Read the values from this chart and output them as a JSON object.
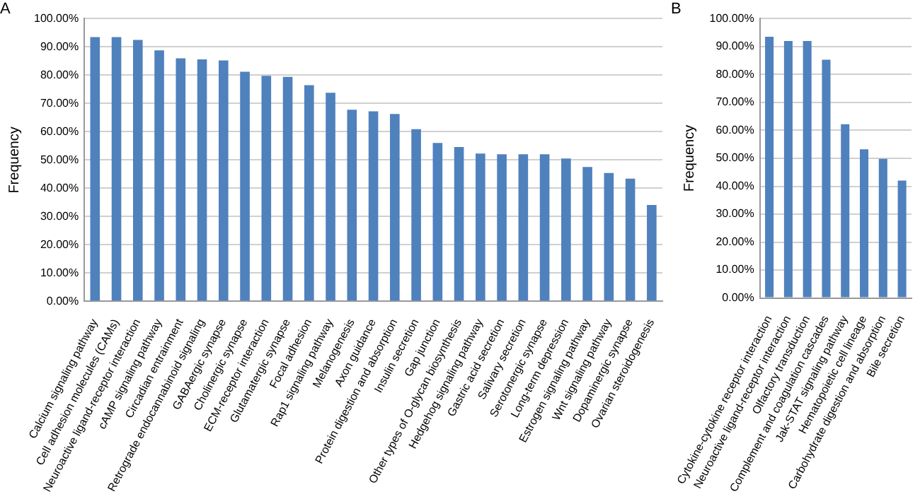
{
  "chart_data": [
    {
      "type": "bar",
      "title": "A",
      "ylabel": "Frequency",
      "grid": "y",
      "legend": false,
      "categories": [
        "Calcium signaling pathway",
        "Cell adhesion molecules (CAMs)",
        "Neuroactive ligand-receptor interaction",
        "cAMP signaling pathway",
        "Circadian entrainment",
        "Retrograde endocannabinoid signaling",
        "GABAergic synapse",
        "Cholinergic synapse",
        "ECM-receptor interaction",
        "Glutamatergic synapse",
        "Focal adhesion",
        "Rap1 signaling pathway",
        "Melanogenesis",
        "Axon guidance",
        "Protein digestion and absorption",
        "Insulin secretion",
        "Gap junction",
        "Other types of O-glycan biosynthesis",
        "Hedgehog signaling pathway",
        "Gastric acid secretion",
        "Salivary secretion",
        "Serotonergic synapse",
        "Long-term depression",
        "Estrogen signaling pathway",
        "Wnt signaling pathway",
        "Dopaminergic synapse",
        "Ovarian steroidogenesis"
      ],
      "series": [
        {
          "color": "#4f81bd",
          "values": [
            93.5,
            93.5,
            92.5,
            88.8,
            86,
            85.6,
            85.2,
            81.2,
            79.8,
            79.4,
            76.5,
            73.8,
            67.8,
            67.2,
            66.3,
            60.9,
            56,
            54.6,
            52.3,
            52,
            52,
            52,
            50.5,
            47.5,
            45.4,
            43.4,
            34.1
          ]
        }
      ],
      "ylim": [
        0,
        100
      ],
      "yticks": [
        {
          "value": 0,
          "label": "0.00%"
        },
        {
          "value": 10,
          "label": "10.00%"
        },
        {
          "value": 20,
          "label": "20.00%"
        },
        {
          "value": 30,
          "label": "30.00%"
        },
        {
          "value": 40,
          "label": "40.00%"
        },
        {
          "value": 50,
          "label": "50.00%"
        },
        {
          "value": 60,
          "label": "60.00%"
        },
        {
          "value": 70,
          "label": "70.00%"
        },
        {
          "value": 80,
          "label": "80.00%"
        },
        {
          "value": 90,
          "label": "90.00%"
        },
        {
          "value": 100,
          "label": "100.00%"
        }
      ]
    },
    {
      "type": "bar",
      "title": "B",
      "ylabel": "Frequency",
      "grid": "y",
      "legend": false,
      "categories": [
        "Cytokine-cytokine receptor interaction",
        "Neuroactive ligand-receptor interaction",
        "Olfactory transduction",
        "Complement and coagulation cascades",
        "Jak-STAT signaling pathway",
        "Hematopoietic cell lineage",
        "Carbohydrate digestion and absorption",
        "Bile secretion"
      ],
      "series": [
        {
          "color": "#4f81bd",
          "values": [
            93.5,
            92,
            92,
            85.3,
            62.2,
            53.2,
            49.8,
            42
          ]
        }
      ],
      "ylim": [
        0,
        100
      ],
      "yticks": [
        {
          "value": 0,
          "label": "0.00%"
        },
        {
          "value": 10,
          "label": "10.00%"
        },
        {
          "value": 20,
          "label": "20.00%"
        },
        {
          "value": 30,
          "label": "30.00%"
        },
        {
          "value": 40,
          "label": "40.00%"
        },
        {
          "value": 50,
          "label": "50.00%"
        },
        {
          "value": 60,
          "label": "60.00%"
        },
        {
          "value": 70,
          "label": "70.00%"
        },
        {
          "value": 80,
          "label": "80.00%"
        },
        {
          "value": 90,
          "label": "90.00%"
        },
        {
          "value": 100,
          "label": "100.00%"
        }
      ]
    }
  ]
}
